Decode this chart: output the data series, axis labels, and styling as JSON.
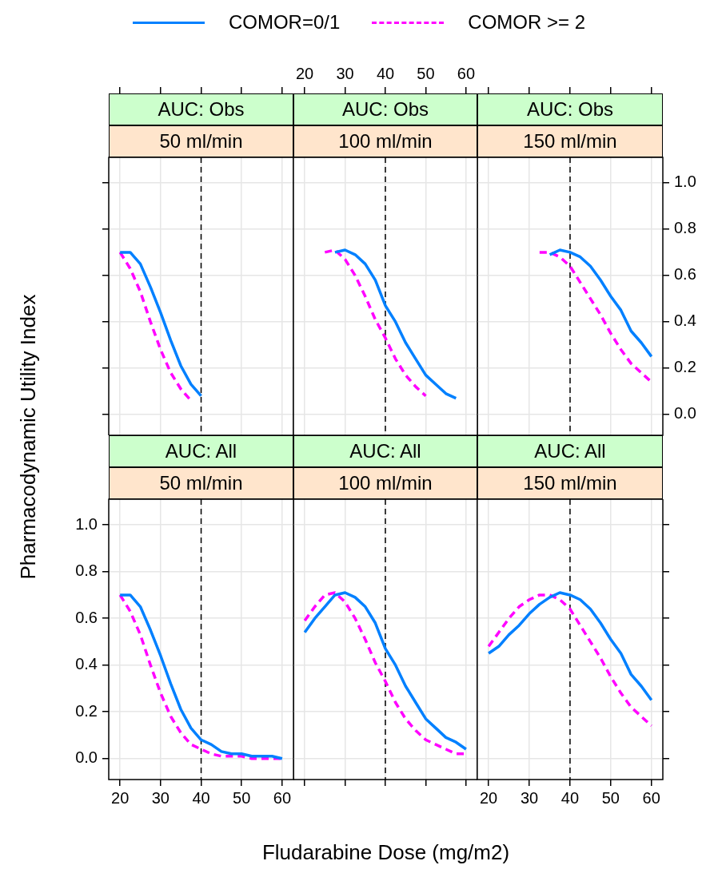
{
  "chart_data": [
    {
      "type": "line",
      "title": "AUC: Obs",
      "subtitle": "50 ml/min",
      "xlim": [
        17.2,
        62.8
      ],
      "xticks": [
        20,
        30,
        40,
        50,
        60
      ],
      "ylim": [
        -0.09,
        1.11
      ],
      "yticks": [
        0,
        0.2,
        0.4,
        0.6,
        0.8,
        1
      ],
      "grid": true,
      "tick_labels": false,
      "legend": "top",
      "ref_lines": [
        {
          "axis": "x",
          "value": 40,
          "color": "#000000",
          "line_style": "dashed"
        }
      ],
      "series": [
        {
          "name": "COMOR=0/1",
          "color": "#0080ff",
          "line_style": "solid",
          "x": [
            20,
            22.5,
            25,
            27.5,
            30,
            32.5,
            35,
            37.5,
            40
          ],
          "values": [
            0.7,
            0.7,
            0.65,
            0.55,
            0.44,
            0.32,
            0.21,
            0.13,
            0.08
          ]
        },
        {
          "name": "COMOR >= 2",
          "color": "#ff00ff",
          "line_style": "dashed",
          "x": [
            20,
            22.5,
            25,
            27.5,
            30,
            32.5,
            35,
            37.5
          ],
          "values": [
            0.7,
            0.63,
            0.53,
            0.4,
            0.28,
            0.18,
            0.11,
            0.06
          ]
        }
      ]
    },
    {
      "type": "line",
      "title": "AUC: Obs",
      "subtitle": "100 ml/min",
      "xlim": [
        17.2,
        62.8
      ],
      "xticks": [
        20,
        30,
        40,
        50,
        60
      ],
      "ylim": [
        -0.09,
        1.11
      ],
      "yticks": [
        0,
        0.2,
        0.4,
        0.6,
        0.8,
        1
      ],
      "grid": true,
      "tick_labels": "x",
      "ref_lines": [
        {
          "axis": "x",
          "value": 40,
          "color": "#000000",
          "line_style": "dashed"
        }
      ],
      "series": [
        {
          "color": "#0080ff",
          "line_style": "solid",
          "x": [
            27.5,
            30,
            32.5,
            35,
            37.5,
            40,
            42.5,
            45,
            47.5,
            50,
            52.5,
            55,
            57.5
          ],
          "values": [
            0.7,
            0.71,
            0.69,
            0.65,
            0.58,
            0.47,
            0.4,
            0.31,
            0.24,
            0.17,
            0.13,
            0.09,
            0.07
          ]
        },
        {
          "color": "#ff00ff",
          "line_style": "dashed",
          "x": [
            25,
            27.5,
            30,
            32.5,
            35,
            37.5,
            40,
            42.5,
            45,
            47.5,
            50
          ],
          "values": [
            0.7,
            0.71,
            0.67,
            0.6,
            0.51,
            0.41,
            0.33,
            0.24,
            0.17,
            0.12,
            0.08
          ]
        }
      ]
    },
    {
      "type": "line",
      "title": "AUC: Obs",
      "subtitle": "150 ml/min",
      "xlim": [
        17.2,
        62.8
      ],
      "xticks": [
        20,
        30,
        40,
        50,
        60
      ],
      "ylim": [
        -0.09,
        1.11
      ],
      "yticks": [
        {
          "value": 0,
          "label": "0.0"
        },
        {
          "value": 0.2,
          "label": "0.2"
        },
        {
          "value": 0.4,
          "label": "0.4"
        },
        {
          "value": 0.6,
          "label": "0.6"
        },
        {
          "value": 0.8,
          "label": "0.8"
        },
        {
          "value": 1,
          "label": "1.0"
        }
      ],
      "grid": true,
      "tick_labels": "y",
      "ref_lines": [
        {
          "axis": "x",
          "value": 40,
          "color": "#000000",
          "line_style": "dashed"
        }
      ],
      "series": [
        {
          "color": "#0080ff",
          "line_style": "solid",
          "x": [
            35,
            37.5,
            40,
            42.5,
            45,
            47.5,
            50,
            52.5,
            55,
            57.5,
            60
          ],
          "values": [
            0.69,
            0.71,
            0.7,
            0.68,
            0.64,
            0.58,
            0.51,
            0.45,
            0.36,
            0.31,
            0.25
          ]
        },
        {
          "color": "#ff00ff",
          "line_style": "dashed",
          "x": [
            32.5,
            35,
            37.5,
            40,
            42.5,
            45,
            47.5,
            50,
            52.5,
            55,
            57.5,
            60
          ],
          "values": [
            0.7,
            0.7,
            0.68,
            0.64,
            0.57,
            0.5,
            0.43,
            0.35,
            0.28,
            0.22,
            0.18,
            0.14
          ]
        }
      ]
    },
    {
      "type": "line",
      "title": "AUC: All",
      "subtitle": "50 ml/min",
      "ylabel": "Pharmacodynamic Utility Index",
      "x": [
        20,
        22.5,
        25,
        27.5,
        30,
        32.5,
        35,
        37.5,
        40,
        42.5,
        45,
        47.5,
        50,
        52.5,
        55,
        57.5,
        60
      ],
      "xlim": [
        17.2,
        62.8
      ],
      "xticks": [
        20,
        30,
        40,
        50,
        60
      ],
      "ylim": [
        -0.09,
        1.11
      ],
      "yticks": [
        {
          "value": 0,
          "label": "0.0"
        },
        {
          "value": 0.2,
          "label": "0.2"
        },
        {
          "value": 0.4,
          "label": "0.4"
        },
        {
          "value": 0.6,
          "label": "0.6"
        },
        {
          "value": 0.8,
          "label": "0.8"
        },
        {
          "value": 1,
          "label": "1.0"
        }
      ],
      "grid": true,
      "ref_lines": [
        {
          "axis": "x",
          "value": 40,
          "color": "#000000",
          "line_style": "dashed"
        }
      ],
      "series": [
        {
          "color": "#0080ff",
          "line_style": "solid",
          "values": [
            0.7,
            0.7,
            0.65,
            0.55,
            0.44,
            0.32,
            0.21,
            0.13,
            0.08,
            0.06,
            0.03,
            0.02,
            0.02,
            0.01,
            0.01,
            0.01,
            0.0
          ]
        },
        {
          "color": "#ff00ff",
          "line_style": "dashed",
          "values": [
            0.7,
            0.63,
            0.53,
            0.4,
            0.28,
            0.18,
            0.11,
            0.06,
            0.04,
            0.02,
            0.01,
            0.01,
            0.01,
            0.0,
            0.0,
            0.0,
            0.0
          ]
        }
      ]
    },
    {
      "type": "line",
      "title": "AUC: All",
      "subtitle": "100 ml/min",
      "xlabel": "Fludarabine Dose (mg/m2)",
      "x": [
        20,
        22.5,
        25,
        27.5,
        30,
        32.5,
        35,
        37.5,
        40,
        42.5,
        45,
        47.5,
        50,
        52.5,
        55,
        57.5,
        60
      ],
      "xlim": [
        17.2,
        62.8
      ],
      "xticks": [
        20,
        30,
        40,
        50,
        60
      ],
      "ylim": [
        -0.09,
        1.11
      ],
      "yticks": [
        0,
        0.2,
        0.4,
        0.6,
        0.8,
        1
      ],
      "grid": true,
      "tick_labels": false,
      "ref_lines": [
        {
          "axis": "x",
          "value": 40,
          "color": "#000000",
          "line_style": "dashed"
        }
      ],
      "series": [
        {
          "color": "#0080ff",
          "line_style": "solid",
          "values": [
            0.54,
            0.6,
            0.65,
            0.7,
            0.71,
            0.69,
            0.65,
            0.58,
            0.47,
            0.4,
            0.31,
            0.24,
            0.17,
            0.13,
            0.09,
            0.07,
            0.04
          ]
        },
        {
          "color": "#ff00ff",
          "line_style": "dashed",
          "values": [
            0.59,
            0.65,
            0.7,
            0.71,
            0.67,
            0.6,
            0.51,
            0.41,
            0.33,
            0.24,
            0.17,
            0.12,
            0.08,
            0.06,
            0.04,
            0.02,
            0.02
          ]
        }
      ]
    },
    {
      "type": "line",
      "title": "AUC: All",
      "subtitle": "150 ml/min",
      "x": [
        20,
        22.5,
        25,
        27.5,
        30,
        32.5,
        35,
        37.5,
        40,
        42.5,
        45,
        47.5,
        50,
        52.5,
        55,
        57.5,
        60
      ],
      "xlim": [
        17.2,
        62.8
      ],
      "xticks": [
        20,
        30,
        40,
        50,
        60
      ],
      "ylim": [
        -0.09,
        1.11
      ],
      "yticks": [
        0,
        0.2,
        0.4,
        0.6,
        0.8,
        1
      ],
      "grid": true,
      "tick_labels": "x",
      "ref_lines": [
        {
          "axis": "x",
          "value": 40,
          "color": "#000000",
          "line_style": "dashed"
        }
      ],
      "series": [
        {
          "color": "#0080ff",
          "line_style": "solid",
          "values": [
            0.45,
            0.48,
            0.53,
            0.57,
            0.62,
            0.66,
            0.69,
            0.71,
            0.7,
            0.68,
            0.64,
            0.58,
            0.51,
            0.45,
            0.36,
            0.31,
            0.25
          ]
        },
        {
          "color": "#ff00ff",
          "line_style": "dashed",
          "values": [
            0.48,
            0.54,
            0.6,
            0.65,
            0.68,
            0.7,
            0.7,
            0.68,
            0.64,
            0.57,
            0.5,
            0.43,
            0.35,
            0.28,
            0.22,
            0.18,
            0.14
          ]
        }
      ]
    }
  ]
}
